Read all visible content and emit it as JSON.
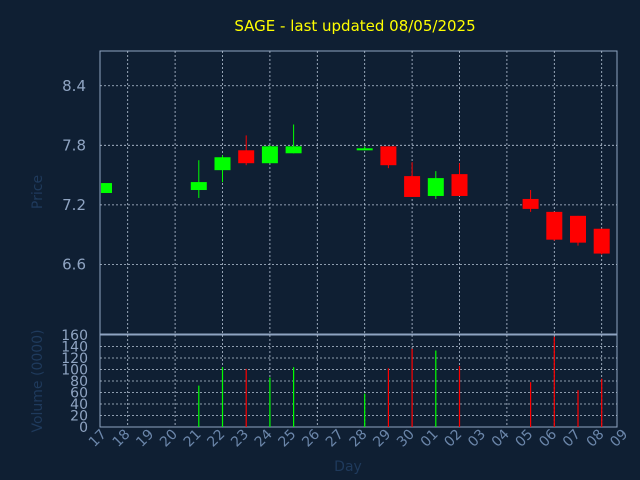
{
  "chart_data": [
    {
      "type": "candlestick",
      "title": "SAGE - last updated 08/05/2025",
      "ylabel": "Price",
      "ylim": [
        5.9,
        8.75
      ],
      "yticks": [
        "6.6",
        "7.2",
        "7.8",
        "8.4"
      ],
      "grid": true,
      "up_color": "#00ff00",
      "down_color": "#ff0000",
      "candles": [
        {
          "x": "17",
          "open": 7.32,
          "high": 7.42,
          "low": 7.32,
          "close": 7.42
        },
        {
          "x": "21",
          "open": 7.35,
          "high": 7.65,
          "low": 7.27,
          "close": 7.43
        },
        {
          "x": "22",
          "open": 7.55,
          "high": 7.7,
          "low": 7.43,
          "close": 7.68
        },
        {
          "x": "23",
          "open": 7.75,
          "high": 7.9,
          "low": 7.6,
          "close": 7.62
        },
        {
          "x": "24",
          "open": 7.62,
          "high": 7.8,
          "low": 7.62,
          "close": 7.79
        },
        {
          "x": "25",
          "open": 7.72,
          "high": 8.01,
          "low": 7.72,
          "close": 7.79
        },
        {
          "x": "28",
          "open": 7.76,
          "high": 7.79,
          "low": 7.75,
          "close": 7.77
        },
        {
          "x": "29",
          "open": 7.79,
          "high": 7.79,
          "low": 7.57,
          "close": 7.6
        },
        {
          "x": "30",
          "open": 7.49,
          "high": 7.63,
          "low": 7.28,
          "close": 7.28
        },
        {
          "x": "01",
          "open": 7.29,
          "high": 7.54,
          "low": 7.26,
          "close": 7.47
        },
        {
          "x": "02",
          "open": 7.51,
          "high": 7.62,
          "low": 7.29,
          "close": 7.29
        },
        {
          "x": "05",
          "open": 7.26,
          "high": 7.35,
          "low": 7.13,
          "close": 7.16
        },
        {
          "x": "06",
          "open": 7.13,
          "high": 7.13,
          "low": 6.84,
          "close": 6.85
        },
        {
          "x": "07",
          "open": 7.09,
          "high": 7.09,
          "low": 6.79,
          "close": 6.82
        },
        {
          "x": "08",
          "open": 6.96,
          "high": 6.96,
          "low": 6.7,
          "close": 6.71
        }
      ]
    },
    {
      "type": "bar",
      "ylabel": "Volume (0000)",
      "xlabel": "Day",
      "ylim": [
        0,
        160
      ],
      "yticks": [
        "0",
        "20",
        "40",
        "60",
        "80",
        "100",
        "120",
        "140",
        "160"
      ],
      "x_labels": [
        "17",
        "18",
        "19",
        "20",
        "21",
        "22",
        "23",
        "24",
        "25",
        "26",
        "27",
        "28",
        "29",
        "30",
        "01",
        "02",
        "03",
        "04",
        "05",
        "06",
        "07",
        "08",
        "09"
      ],
      "bars": [
        {
          "x": "21",
          "value": 72,
          "color": "#00ff00"
        },
        {
          "x": "22",
          "value": 104,
          "color": "#00ff00"
        },
        {
          "x": "23",
          "value": 101,
          "color": "#ff0000"
        },
        {
          "x": "24",
          "value": 86,
          "color": "#00ff00"
        },
        {
          "x": "25",
          "value": 104,
          "color": "#00ff00"
        },
        {
          "x": "28",
          "value": 58,
          "color": "#00ff00"
        },
        {
          "x": "29",
          "value": 102,
          "color": "#ff0000"
        },
        {
          "x": "30",
          "value": 136,
          "color": "#ff0000"
        },
        {
          "x": "01",
          "value": 133,
          "color": "#00ff00"
        },
        {
          "x": "02",
          "value": 106,
          "color": "#ff0000"
        },
        {
          "x": "05",
          "value": 78,
          "color": "#ff0000"
        },
        {
          "x": "06",
          "value": 157,
          "color": "#ff0000"
        },
        {
          "x": "07",
          "value": 64,
          "color": "#ff0000"
        },
        {
          "x": "08",
          "value": 84,
          "color": "#ff0000"
        }
      ]
    }
  ]
}
